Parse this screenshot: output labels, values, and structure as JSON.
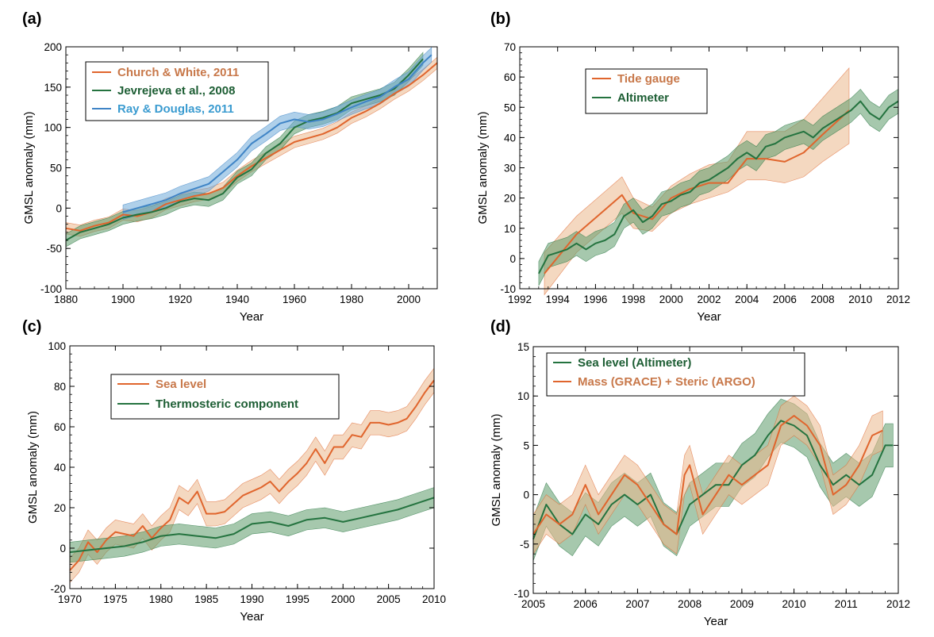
{
  "colors": {
    "orange": "#e0652d",
    "orange_band": "#ebb88c",
    "green": "#24733f",
    "green_band": "#5c9a6a",
    "blue": "#3f84c6",
    "blue_band": "#6ea9d8",
    "church_text": "#c8784a",
    "green_text": "#1d5e34",
    "blue_text": "#3a9bd0"
  },
  "chart_data": [
    {
      "panel": "(a)",
      "type": "line",
      "xlabel": "Year",
      "ylabel": "GMSL anomaly (mm)",
      "xlim": [
        1880,
        2010
      ],
      "ylim": [
        -100,
        200
      ],
      "xticks": [
        1880,
        1900,
        1920,
        1940,
        1960,
        1980,
        2000
      ],
      "yticks": [
        -100,
        -50,
        0,
        50,
        100,
        150,
        200
      ],
      "legend_position": "top-left",
      "series": [
        {
          "name": "Church & White, 2011",
          "color_key": "orange",
          "band_key": "orange_band",
          "uncertainty": 7,
          "x": [
            1880,
            1885,
            1890,
            1895,
            1900,
            1905,
            1910,
            1915,
            1920,
            1925,
            1930,
            1935,
            1940,
            1945,
            1950,
            1955,
            1960,
            1965,
            1970,
            1975,
            1980,
            1985,
            1990,
            1995,
            2000,
            2005,
            2010
          ],
          "y": [
            -25,
            -28,
            -22,
            -18,
            -8,
            -10,
            -5,
            5,
            10,
            15,
            18,
            25,
            40,
            52,
            62,
            72,
            82,
            87,
            92,
            100,
            112,
            120,
            130,
            142,
            152,
            165,
            180
          ]
        },
        {
          "name": "Jevrejeva et al., 2008",
          "color_key": "green",
          "band_key": "green_band",
          "uncertainty": 8,
          "x": [
            1880,
            1885,
            1890,
            1895,
            1900,
            1905,
            1910,
            1915,
            1920,
            1925,
            1930,
            1935,
            1940,
            1945,
            1950,
            1955,
            1960,
            1965,
            1970,
            1975,
            1980,
            1985,
            1990,
            1995,
            2000,
            2005
          ],
          "y": [
            -40,
            -30,
            -25,
            -20,
            -12,
            -8,
            -5,
            0,
            8,
            12,
            10,
            18,
            38,
            48,
            68,
            80,
            100,
            108,
            112,
            118,
            130,
            135,
            140,
            148,
            165,
            185
          ]
        },
        {
          "name": "Ray & Douglas, 2011",
          "color_key": "blue",
          "band_key": "blue_band",
          "uncertainty": 9,
          "x": [
            1900,
            1905,
            1910,
            1915,
            1920,
            1925,
            1930,
            1935,
            1940,
            1945,
            1950,
            1955,
            1960,
            1965,
            1970,
            1975,
            1980,
            1985,
            1990,
            1995,
            2000,
            2005,
            2008
          ],
          "y": [
            -5,
            0,
            5,
            10,
            18,
            24,
            30,
            45,
            60,
            80,
            92,
            105,
            110,
            107,
            110,
            117,
            125,
            132,
            138,
            150,
            160,
            180,
            190
          ]
        }
      ]
    },
    {
      "panel": "(b)",
      "type": "line",
      "xlabel": "Year",
      "ylabel": "GMSL anomaly (mm)",
      "xlim": [
        1992,
        2012
      ],
      "ylim": [
        -10,
        70
      ],
      "xticks": [
        1992,
        1994,
        1996,
        1998,
        2000,
        2002,
        2004,
        2006,
        2008,
        2010,
        2012
      ],
      "yticks": [
        -10,
        0,
        10,
        20,
        30,
        40,
        50,
        60,
        70
      ],
      "legend_position": "top-left",
      "series": [
        {
          "name": "Tide gauge",
          "color_key": "orange",
          "band_key": "orange_band",
          "x": [
            1993.3,
            1995,
            1997.4,
            1998,
            1999,
            2000,
            2001,
            2002,
            2003,
            2004,
            2005,
            2006,
            2007,
            2008,
            2009.4
          ],
          "y": [
            -5,
            8,
            21,
            15,
            13,
            20,
            23,
            25,
            25,
            33,
            33,
            32,
            35,
            41,
            49
          ],
          "upper": [
            2,
            14,
            27,
            20,
            17,
            24,
            28,
            31,
            32,
            42,
            42,
            42,
            46,
            53,
            63
          ],
          "lower": [
            -12,
            2,
            15,
            10,
            9,
            15,
            18,
            20,
            22,
            26,
            26,
            25,
            27,
            32,
            38
          ]
        },
        {
          "name": "Altimeter",
          "color_key": "green",
          "band_key": "green_band",
          "uncertainty": 4,
          "x": [
            1993,
            1993.5,
            1994,
            1994.5,
            1995,
            1995.5,
            1996,
            1996.5,
            1997,
            1997.5,
            1998,
            1998.5,
            1999,
            1999.5,
            2000,
            2000.5,
            2001,
            2001.5,
            2002,
            2002.5,
            2003,
            2003.5,
            2004,
            2004.5,
            2005,
            2005.5,
            2006,
            2006.5,
            2007,
            2007.5,
            2008,
            2008.5,
            2009,
            2009.5,
            2010,
            2010.5,
            2011,
            2011.5,
            2012
          ],
          "y": [
            -5,
            1,
            2,
            3,
            5,
            3,
            5,
            6,
            8,
            14,
            16,
            12,
            14,
            18,
            19,
            21,
            22,
            25,
            26,
            28,
            30,
            33,
            35,
            33,
            37,
            38,
            40,
            41,
            42,
            40,
            43,
            45,
            47,
            49,
            52,
            48,
            46,
            50,
            52
          ]
        }
      ]
    },
    {
      "panel": "(c)",
      "type": "line",
      "xlabel": "Year",
      "ylabel": "GMSL anomaly (mm)",
      "xlim": [
        1970,
        2010
      ],
      "ylim": [
        -20,
        100
      ],
      "xticks": [
        1970,
        1975,
        1980,
        1985,
        1990,
        1995,
        2000,
        2005,
        2010
      ],
      "yticks": [
        -20,
        0,
        20,
        40,
        60,
        80,
        100
      ],
      "legend_position": "top-center",
      "series": [
        {
          "name": "Sea level",
          "color_key": "orange",
          "band_key": "orange_band",
          "uncertainty": 6,
          "x": [
            1970,
            1971,
            1972,
            1973,
            1974,
            1975,
            1976,
            1977,
            1978,
            1979,
            1980,
            1981,
            1982,
            1983,
            1984,
            1985,
            1986,
            1987,
            1988,
            1989,
            1990,
            1991,
            1992,
            1993,
            1994,
            1995,
            1996,
            1997,
            1998,
            1999,
            2000,
            2001,
            2002,
            2003,
            2004,
            2005,
            2006,
            2007,
            2008,
            2009,
            2010
          ],
          "y": [
            -11,
            -6,
            3,
            -2,
            4,
            8,
            7,
            6,
            11,
            5,
            10,
            14,
            25,
            22,
            28,
            17,
            17,
            18,
            22,
            26,
            28,
            30,
            33,
            28,
            33,
            37,
            42,
            49,
            42,
            50,
            50,
            56,
            55,
            62,
            62,
            61,
            62,
            64,
            70,
            77,
            83
          ]
        },
        {
          "name": "Thermosteric component",
          "color_key": "green",
          "band_key": "green_band",
          "uncertainty": 5,
          "x": [
            1970,
            1972,
            1974,
            1976,
            1978,
            1980,
            1982,
            1984,
            1986,
            1988,
            1990,
            1992,
            1994,
            1996,
            1998,
            2000,
            2002,
            2004,
            2006,
            2008,
            2010
          ],
          "y": [
            -2,
            -1,
            0,
            1,
            3,
            6,
            7,
            6,
            5,
            7,
            12,
            13,
            11,
            14,
            15,
            13,
            15,
            17,
            19,
            22,
            25
          ]
        }
      ]
    },
    {
      "panel": "(d)",
      "type": "line",
      "xlabel": "Year",
      "ylabel": "GMSL anomaly (mm)",
      "xlim": [
        2005,
        2012
      ],
      "ylim": [
        -10,
        15
      ],
      "xticks": [
        2005,
        2006,
        2007,
        2008,
        2009,
        2010,
        2011,
        2012
      ],
      "yticks": [
        -10,
        -5,
        0,
        5,
        10,
        15
      ],
      "legend_position": "top-left",
      "series": [
        {
          "name": "Sea level (Altimeter)",
          "color_key": "green",
          "band_key": "green_band",
          "uncertainty": 2.2,
          "x": [
            2005,
            2005.25,
            2005.5,
            2005.75,
            2006,
            2006.25,
            2006.5,
            2006.75,
            2007,
            2007.25,
            2007.5,
            2007.75,
            2008,
            2008.25,
            2008.5,
            2008.75,
            2009,
            2009.25,
            2009.5,
            2009.75,
            2010,
            2010.25,
            2010.5,
            2010.75,
            2011,
            2011.25,
            2011.5,
            2011.75,
            2011.9
          ],
          "y": [
            -4.5,
            -1,
            -3,
            -4,
            -2,
            -3,
            -1,
            0,
            -1,
            0,
            -3,
            -4,
            -1,
            0,
            1,
            1,
            3,
            4,
            6,
            7.5,
            7,
            6,
            3,
            1,
            2,
            1,
            2,
            5,
            5
          ]
        },
        {
          "name": "Mass (GRACE) + Steric (ARGO)",
          "color_key": "orange",
          "band_key": "orange_band",
          "uncertainty": 2.0,
          "x": [
            2005,
            2005.25,
            2005.5,
            2005.75,
            2006,
            2006.25,
            2006.5,
            2006.75,
            2007,
            2007.25,
            2007.5,
            2007.75,
            2007.9,
            2008,
            2008.25,
            2008.5,
            2008.75,
            2009,
            2009.25,
            2009.5,
            2009.75,
            2010,
            2010.25,
            2010.5,
            2010.75,
            2011,
            2011.25,
            2011.5,
            2011.7
          ],
          "y": [
            -4,
            -2,
            -3,
            -2,
            1,
            -2,
            0,
            2,
            1,
            -1,
            -3,
            -4,
            2,
            3,
            -2,
            0,
            2,
            1,
            2,
            3,
            7,
            8,
            7,
            5,
            0,
            1,
            3,
            6,
            6.5
          ]
        }
      ]
    }
  ]
}
